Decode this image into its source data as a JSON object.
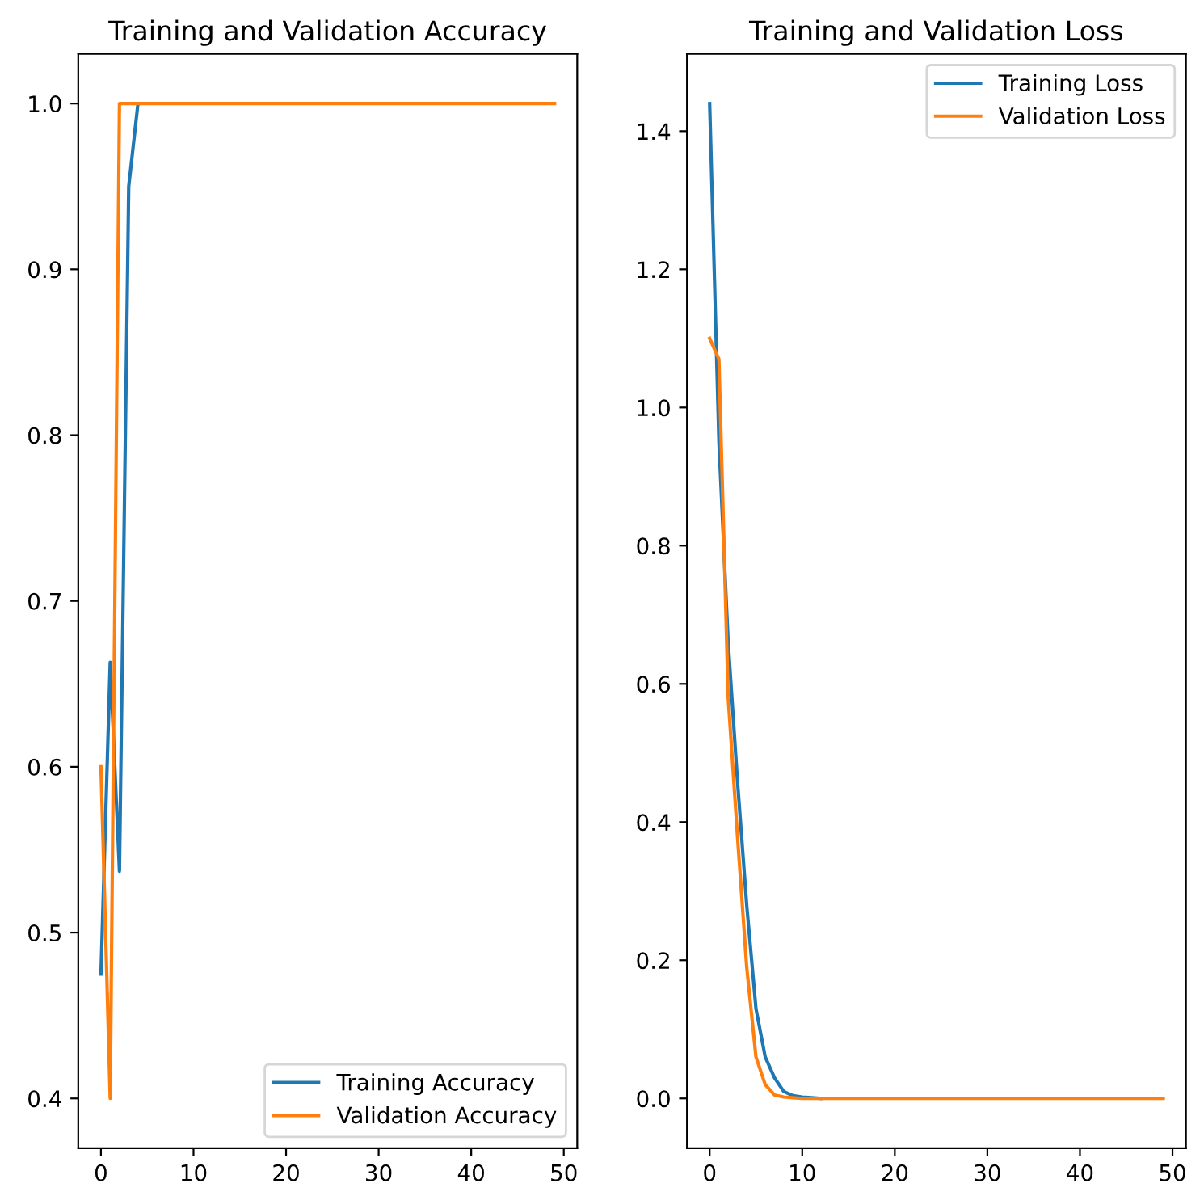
{
  "chart_data": [
    {
      "type": "line",
      "title": "Training and Validation Accuracy",
      "x": [
        0,
        1,
        2,
        3,
        4,
        5,
        6,
        7,
        8,
        9,
        10,
        11,
        12,
        13,
        14,
        15,
        16,
        17,
        18,
        19,
        20,
        21,
        22,
        23,
        24,
        25,
        26,
        27,
        28,
        29,
        30,
        31,
        32,
        33,
        34,
        35,
        36,
        37,
        38,
        39,
        40,
        41,
        42,
        43,
        44,
        45,
        46,
        47,
        48,
        49
      ],
      "series": [
        {
          "name": "Training Accuracy",
          "color": "#1f77b4",
          "values": [
            0.475,
            0.663,
            0.537,
            0.95,
            1.0,
            null,
            null,
            null,
            null,
            null,
            null,
            null,
            null,
            null,
            null,
            null,
            null,
            null,
            null,
            null,
            null,
            null,
            null,
            null,
            null,
            null,
            null,
            null,
            null,
            null,
            null,
            null,
            null,
            null,
            null,
            null,
            null,
            null,
            null,
            null,
            null,
            null,
            null,
            null,
            null,
            null,
            null,
            null,
            null,
            null
          ]
        },
        {
          "name": "Validation Accuracy",
          "color": "#ff7f0e",
          "values": [
            0.6,
            0.4,
            1.0,
            1.0,
            1.0,
            1.0,
            1.0,
            1.0,
            1.0,
            1.0,
            1.0,
            1.0,
            1.0,
            1.0,
            1.0,
            1.0,
            1.0,
            1.0,
            1.0,
            1.0,
            1.0,
            1.0,
            1.0,
            1.0,
            1.0,
            1.0,
            1.0,
            1.0,
            1.0,
            1.0,
            1.0,
            1.0,
            1.0,
            1.0,
            1.0,
            1.0,
            1.0,
            1.0,
            1.0,
            1.0,
            1.0,
            1.0,
            1.0,
            1.0,
            1.0,
            1.0,
            1.0,
            1.0,
            1.0,
            1.0
          ]
        }
      ],
      "xlim": [
        -2.45,
        51.45
      ],
      "ylim": [
        0.37,
        1.03
      ],
      "xticks": [
        0,
        10,
        20,
        30,
        40,
        50
      ],
      "yticks": [
        {
          "value": 0.4,
          "label": "0.4"
        },
        {
          "value": 0.5,
          "label": "0.5"
        },
        {
          "value": 0.6,
          "label": "0.6"
        },
        {
          "value": 0.7,
          "label": "0.7"
        },
        {
          "value": 0.8,
          "label": "0.8"
        },
        {
          "value": 0.9,
          "label": "0.9"
        },
        {
          "value": 1.0,
          "label": "1.0"
        }
      ],
      "legend": "lower right",
      "grid": false
    },
    {
      "type": "line",
      "title": "Training and Validation Loss",
      "x": [
        0,
        1,
        2,
        3,
        4,
        5,
        6,
        7,
        8,
        9,
        10,
        11,
        12,
        13,
        14,
        15,
        16,
        17,
        18,
        19,
        20,
        21,
        22,
        23,
        24,
        25,
        26,
        27,
        28,
        29,
        30,
        31,
        32,
        33,
        34,
        35,
        36,
        37,
        38,
        39,
        40,
        41,
        42,
        43,
        44,
        45,
        46,
        47,
        48,
        49
      ],
      "series": [
        {
          "name": "Training Loss",
          "color": "#1f77b4",
          "values": [
            1.44,
            0.95,
            0.66,
            0.46,
            0.28,
            0.13,
            0.06,
            0.03,
            0.01,
            0.004,
            0.002,
            0.001,
            0,
            null,
            null,
            null,
            null,
            null,
            null,
            null,
            null,
            null,
            null,
            null,
            null,
            null,
            null,
            null,
            null,
            null,
            null,
            null,
            null,
            null,
            null,
            null,
            null,
            null,
            null,
            null,
            null,
            null,
            null,
            null,
            null,
            null,
            null,
            null,
            null,
            null
          ]
        },
        {
          "name": "Validation Loss",
          "color": "#ff7f0e",
          "values": [
            1.1,
            1.07,
            0.58,
            0.38,
            0.19,
            0.06,
            0.02,
            0.005,
            0.002,
            0.001,
            0,
            0,
            0,
            0,
            0,
            0,
            0,
            0,
            0,
            0,
            0,
            0,
            0,
            0,
            0,
            0,
            0,
            0,
            0,
            0,
            0,
            0,
            0,
            0,
            0,
            0,
            0,
            0,
            0,
            0,
            0,
            0,
            0,
            0,
            0,
            0,
            0,
            0,
            0,
            0
          ]
        }
      ],
      "xlim": [
        -2.45,
        51.45
      ],
      "ylim": [
        -0.072,
        1.512
      ],
      "xticks": [
        0,
        10,
        20,
        30,
        40,
        50
      ],
      "yticks": [
        {
          "value": 0.0,
          "label": "0.0"
        },
        {
          "value": 0.2,
          "label": "0.2"
        },
        {
          "value": 0.4,
          "label": "0.4"
        },
        {
          "value": 0.6,
          "label": "0.6"
        },
        {
          "value": 0.8,
          "label": "0.8"
        },
        {
          "value": 1.0,
          "label": "1.0"
        },
        {
          "value": 1.2,
          "label": "1.2"
        },
        {
          "value": 1.4,
          "label": "1.4"
        }
      ],
      "legend": "upper right",
      "grid": false
    }
  ]
}
